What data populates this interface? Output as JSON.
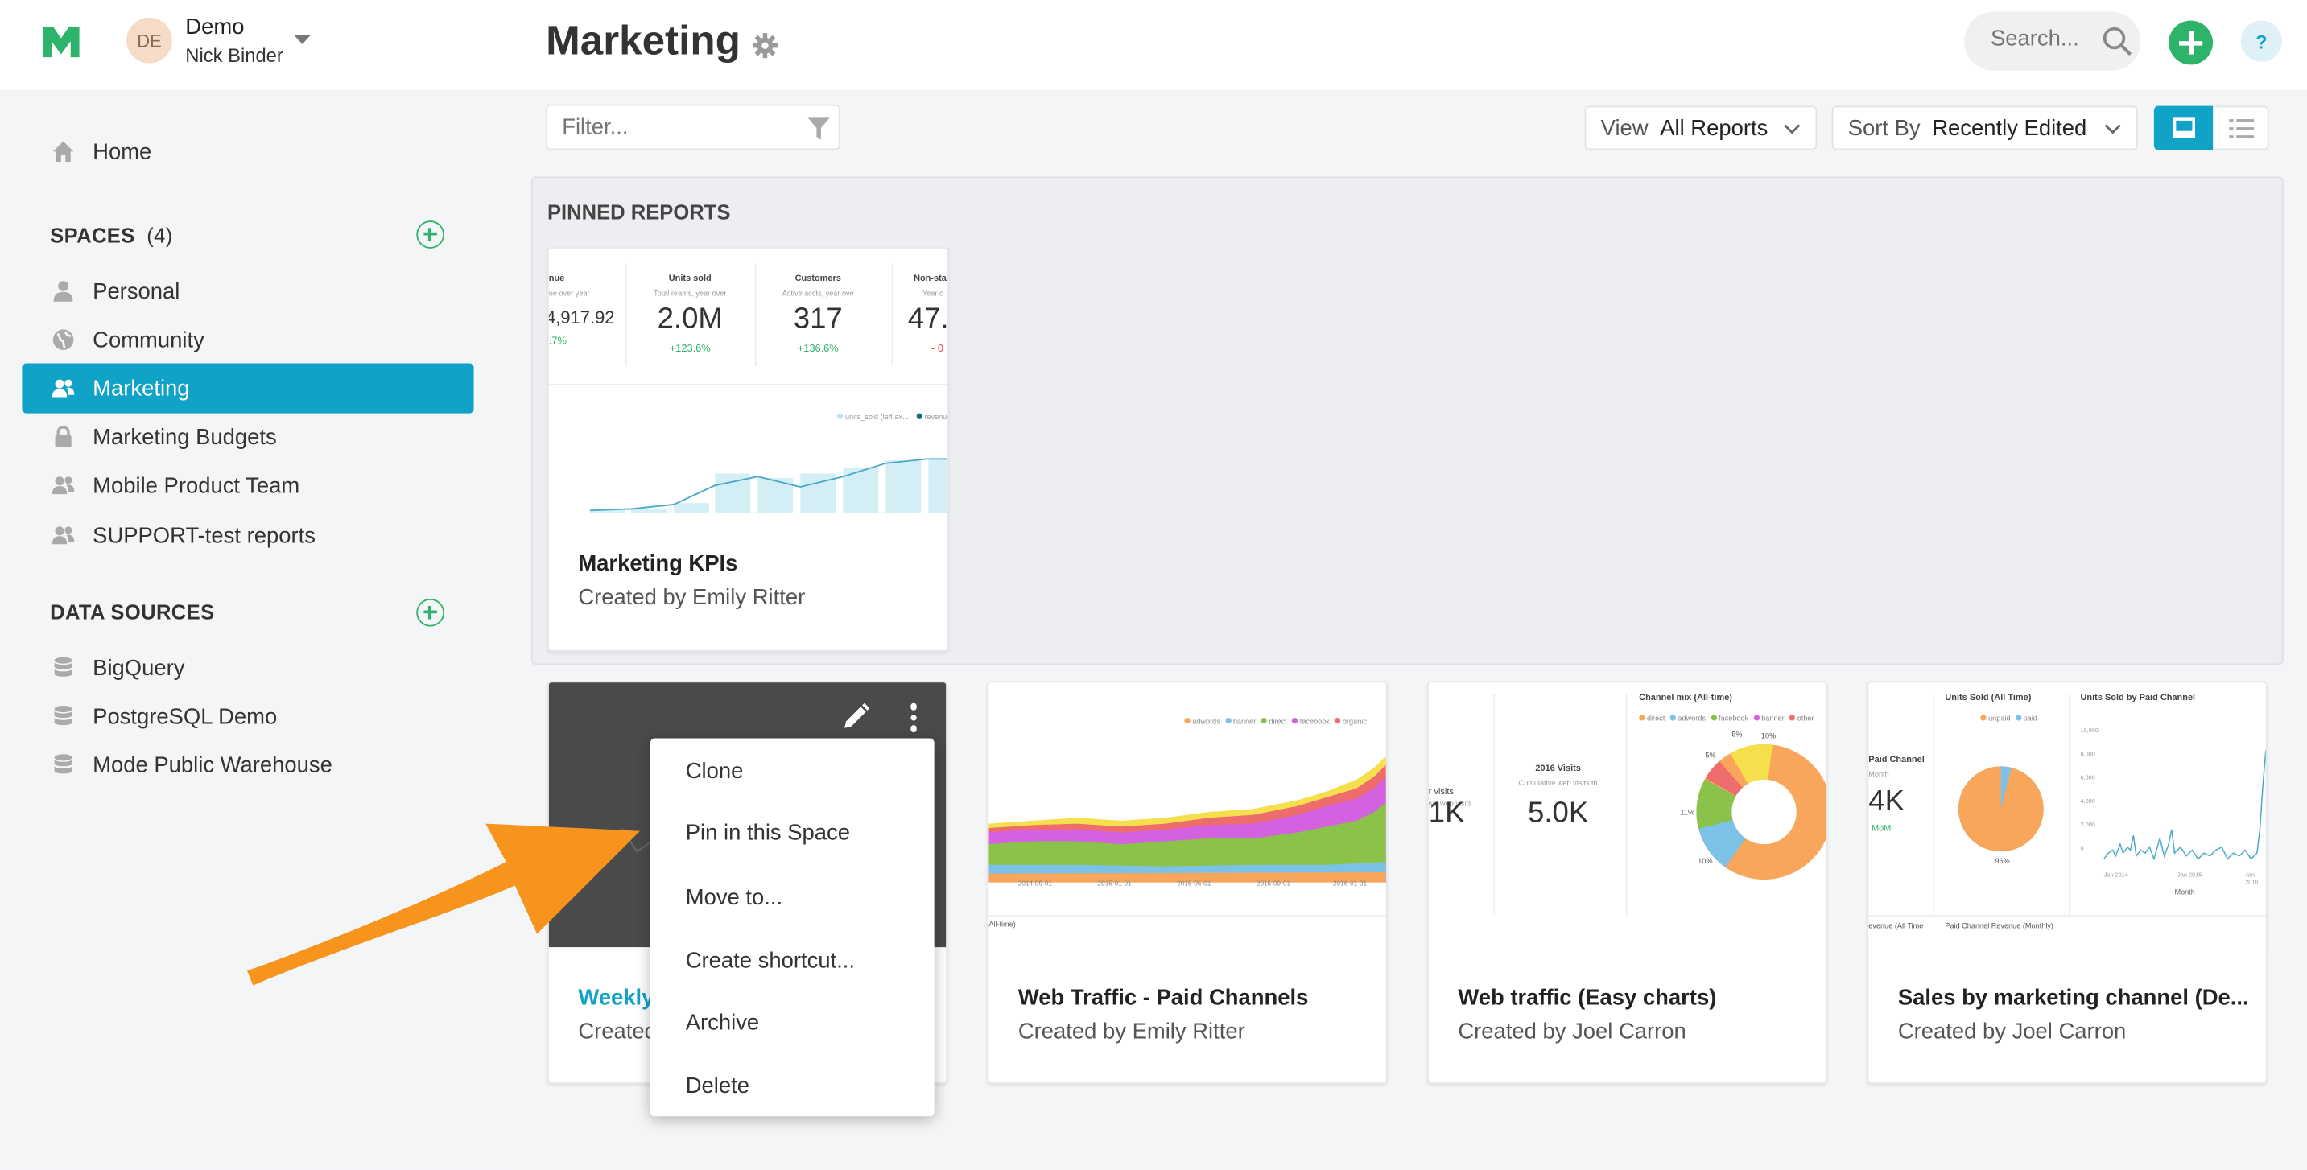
{
  "header": {
    "account_initials": "DE",
    "account_name": "Demo",
    "user_name": "Nick Binder",
    "page_title": "Marketing",
    "search_placeholder": "Search...",
    "help_label": "?"
  },
  "colors": {
    "brand_green": "#2db36a",
    "accent_blue": "#11a2c7",
    "arrow_orange": "#f7941d"
  },
  "sidebar": {
    "home_label": "Home",
    "spaces_title": "SPACES",
    "spaces_count": "(4)",
    "spaces": [
      {
        "label": "Personal",
        "icon": "person-icon"
      },
      {
        "label": "Community",
        "icon": "globe-icon"
      },
      {
        "label": "Marketing",
        "icon": "group-icon",
        "active": true
      },
      {
        "label": "Marketing Budgets",
        "icon": "lock-icon"
      },
      {
        "label": "Mobile Product Team",
        "icon": "group-icon"
      },
      {
        "label": "SUPPORT-test reports",
        "icon": "group-icon"
      }
    ],
    "data_sources_title": "DATA SOURCES",
    "data_sources": [
      {
        "label": "BigQuery",
        "icon": "database-icon"
      },
      {
        "label": "PostgreSQL Demo",
        "icon": "database-icon"
      },
      {
        "label": "Mode Public Warehouse",
        "icon": "database-icon"
      }
    ]
  },
  "toolbar": {
    "filter_placeholder": "Filter...",
    "view_label": "View",
    "view_value": "All Reports",
    "sort_label": "Sort By",
    "sort_value": "Recently Edited"
  },
  "pinned": {
    "title": "PINNED REPORTS",
    "card": {
      "title": "Marketing KPIs",
      "created_by": "Created by Emily Ritter",
      "kpis": [
        {
          "label": "nue",
          "sub": "ue over year",
          "value": "4,917.92",
          "change": ".7%"
        },
        {
          "label": "Units sold",
          "sub": "Total reams, year over",
          "value": "2.0M",
          "change": "+123.6%"
        },
        {
          "label": "Customers",
          "sub": "Active accts, year ove",
          "value": "317",
          "change": "+136.6%"
        },
        {
          "label": "Non-stan",
          "sub": "Year o",
          "value": "47.3",
          "change": "- 0"
        }
      ],
      "legend": [
        "units_sold (left ax...",
        "revenue"
      ]
    }
  },
  "reports": [
    {
      "title": "Weekly",
      "created_by": "Created"
    },
    {
      "title": "Web Traffic - Paid Channels",
      "created_by": "Created by Emily Ritter",
      "legend": [
        "adwords",
        "banner",
        "direct",
        "facebook",
        "organic"
      ],
      "xticks": [
        "2014-09-01",
        "2015-01-01",
        "2015-05-01",
        "2015-09-01",
        "2016-01-01"
      ],
      "sub_title": "All-time)"
    },
    {
      "title": "Web traffic (Easy charts)",
      "created_by": "Created by Joel Carron",
      "left_label": "r visits",
      "left_sub": "ive web visits",
      "left_value": "1K",
      "mid_label": "2016 Visits",
      "mid_sub": "Cumulative web visits th",
      "mid_value": "5.0K",
      "pie_title": "Channel mix (All-time)",
      "pie_legend": [
        "direct",
        "adwords",
        "facebook",
        "banner",
        "other"
      ],
      "pie_pct": [
        "5%",
        "5%",
        "10%",
        "11%",
        "10%"
      ]
    },
    {
      "title": "Sales by marketing channel (De...",
      "created_by": "Created by Joel Carron",
      "left_label": "Paid Channel",
      "left_sub": "Month",
      "left_value": "4K",
      "left_change": "MoM",
      "pie_title": "Units Sold (All Time)",
      "pie_legend": [
        "unpaid",
        "paid"
      ],
      "pie_pct": "96%",
      "line_title": "Units Sold by Paid Channel",
      "line_xlabel": "Month",
      "bottom_left": "evenue (All Time",
      "bottom_mid": "Paid Channel Revenue (Monthly)",
      "yticks": [
        "10,000",
        "8,000",
        "6,000",
        "4,000",
        "2,000",
        "0"
      ],
      "xticks": [
        "Jan 2014",
        "Jan 2015",
        "Jan 2016"
      ]
    }
  ],
  "context_menu": {
    "items": [
      "Clone",
      "Pin in this Space",
      "Move to...",
      "Create shortcut...",
      "Archive",
      "Delete"
    ]
  }
}
